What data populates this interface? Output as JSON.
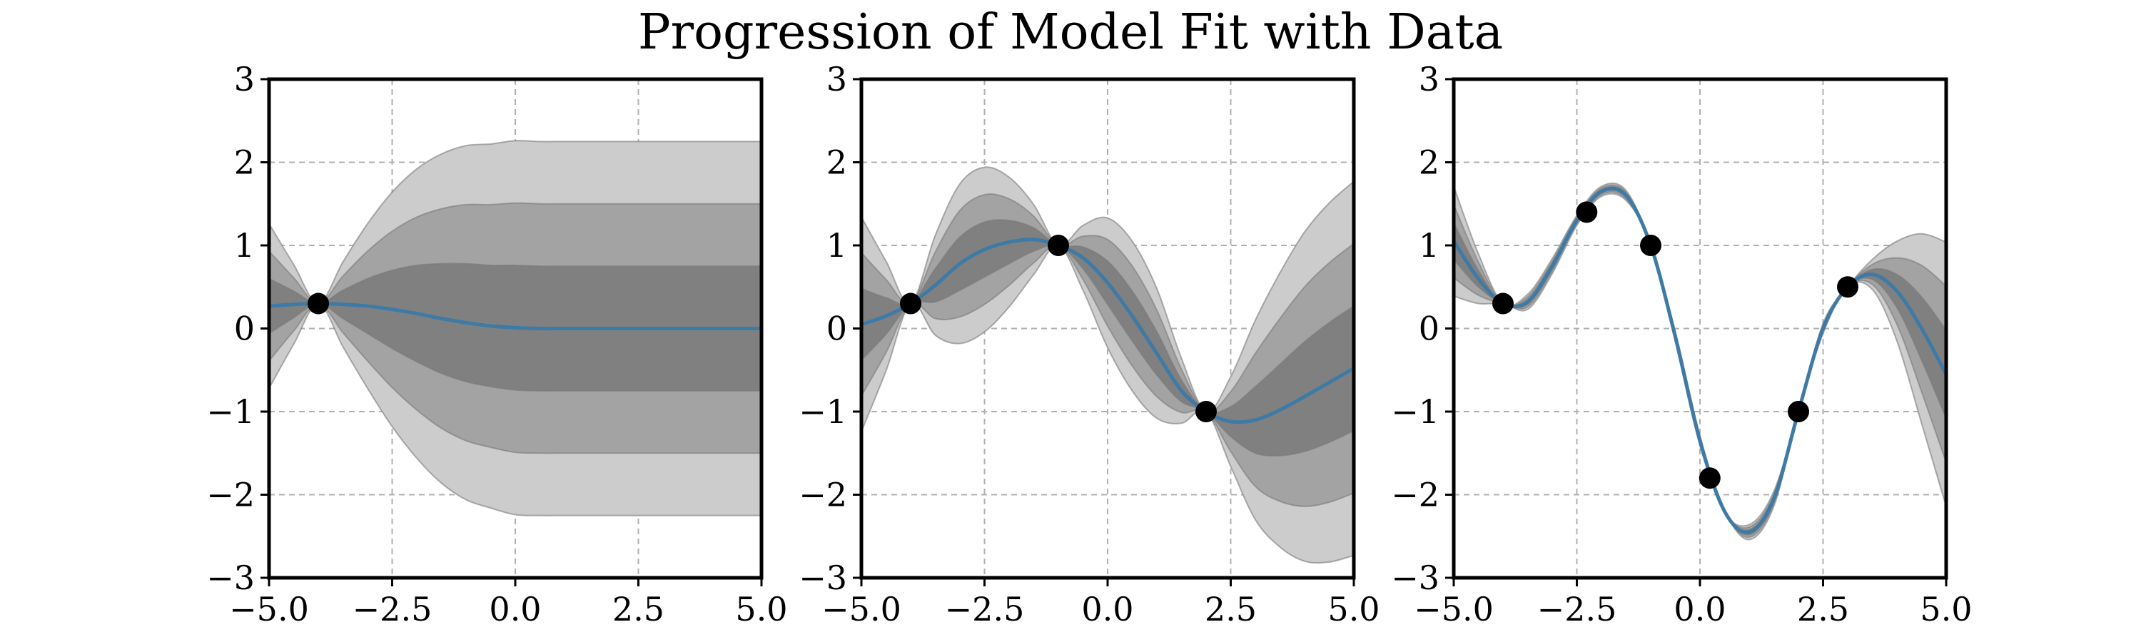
{
  "title": "Progression of Model Fit with Data",
  "colors": {
    "mean": "#3d7aa6",
    "band_3sd": "#cccccc",
    "band_2sd": "#a3a3a3",
    "band_1sd": "#808080",
    "observation": "#000000"
  },
  "chart_data": [
    {
      "type": "line",
      "xlim": [
        -5,
        5
      ],
      "ylim": [
        -3,
        3
      ],
      "xticks": [
        "−5.0",
        "−2.5",
        "0.0",
        "2.5",
        "5.0"
      ],
      "yticks": [
        "−3",
        "−2",
        "−1",
        "0",
        "1",
        "2",
        "3"
      ],
      "grid": true,
      "observations": {
        "x": [
          -4
        ],
        "y": [
          0.3
        ]
      },
      "x": [
        -5,
        -4.5,
        -4,
        -3.5,
        -3,
        -2.5,
        -2,
        -1.5,
        -1,
        -0.5,
        0,
        0.5,
        1,
        1.5,
        2,
        2.5,
        3,
        3.5,
        4,
        4.5,
        5
      ],
      "series": [
        {
          "values": [
            0.27,
            0.29,
            0.3,
            0.29,
            0.27,
            0.23,
            0.18,
            0.12,
            0.07,
            0.03,
            0.01,
            0,
            0,
            0,
            0,
            0,
            0,
            0,
            0,
            0,
            0
          ]
        }
      ],
      "std": [
        0.33,
        0.16,
        0.0,
        0.17,
        0.33,
        0.47,
        0.58,
        0.66,
        0.71,
        0.73,
        0.75,
        0.75,
        0.75,
        0.75,
        0.75,
        0.75,
        0.75,
        0.75,
        0.75,
        0.75,
        0.75
      ]
    },
    {
      "type": "line",
      "xlim": [
        -5,
        5
      ],
      "ylim": [
        -3,
        3
      ],
      "xticks": [
        "−5.0",
        "−2.5",
        "0.0",
        "2.5",
        "5.0"
      ],
      "yticks": [
        "−3",
        "−2",
        "−1",
        "0",
        "1",
        "2",
        "3"
      ],
      "grid": true,
      "observations": {
        "x": [
          -4,
          -1,
          2
        ],
        "y": [
          0.3,
          1.0,
          -1.0
        ]
      },
      "x": [
        -5,
        -4.5,
        -4,
        -3.5,
        -3,
        -2.5,
        -2,
        -1.5,
        -1,
        -0.5,
        0,
        0.5,
        1,
        1.5,
        2,
        2.5,
        3,
        3.5,
        4,
        4.5,
        5
      ],
      "series": [
        {
          "values": [
            0.05,
            0.15,
            0.3,
            0.52,
            0.78,
            0.95,
            1.04,
            1.07,
            1.0,
            0.85,
            0.55,
            0.15,
            -0.3,
            -0.75,
            -1.0,
            -1.12,
            -1.1,
            -0.98,
            -0.82,
            -0.65,
            -0.48
          ]
        }
      ],
      "std": [
        0.43,
        0.22,
        0.0,
        0.2,
        0.32,
        0.33,
        0.26,
        0.14,
        0.0,
        0.13,
        0.26,
        0.3,
        0.26,
        0.13,
        0.0,
        0.18,
        0.4,
        0.55,
        0.66,
        0.72,
        0.75
      ]
    },
    {
      "type": "line",
      "xlim": [
        -5,
        5
      ],
      "ylim": [
        -3,
        3
      ],
      "xticks": [
        "−5.0",
        "−2.5",
        "0.0",
        "2.5",
        "5.0"
      ],
      "yticks": [
        "−3",
        "−2",
        "−1",
        "0",
        "1",
        "2",
        "3"
      ],
      "grid": true,
      "observations": {
        "x": [
          -4,
          -2.3,
          -1,
          0.2,
          2,
          3
        ],
        "y": [
          0.3,
          1.4,
          1.0,
          -1.8,
          -1.0,
          0.5
        ]
      },
      "x": [
        -5,
        -4.5,
        -4,
        -3.5,
        -3,
        -2.5,
        -2,
        -1.5,
        -1,
        -0.5,
        0,
        0.5,
        1,
        1.5,
        2,
        2.5,
        3,
        3.5,
        4,
        4.5,
        5
      ],
      "series": [
        {
          "values": [
            1.05,
            0.6,
            0.3,
            0.32,
            0.75,
            1.3,
            1.65,
            1.6,
            1.0,
            -0.1,
            -1.35,
            -2.2,
            -2.45,
            -2.05,
            -1.0,
            0.0,
            0.5,
            0.65,
            0.45,
            0.0,
            -0.55
          ]
        }
      ],
      "std": [
        0.22,
        0.1,
        0.0,
        0.03,
        0.03,
        0.02,
        0.02,
        0.02,
        0.0,
        0.02,
        0.02,
        0.0,
        0.03,
        0.03,
        0.0,
        0.02,
        0.0,
        0.06,
        0.2,
        0.38,
        0.53
      ]
    }
  ]
}
